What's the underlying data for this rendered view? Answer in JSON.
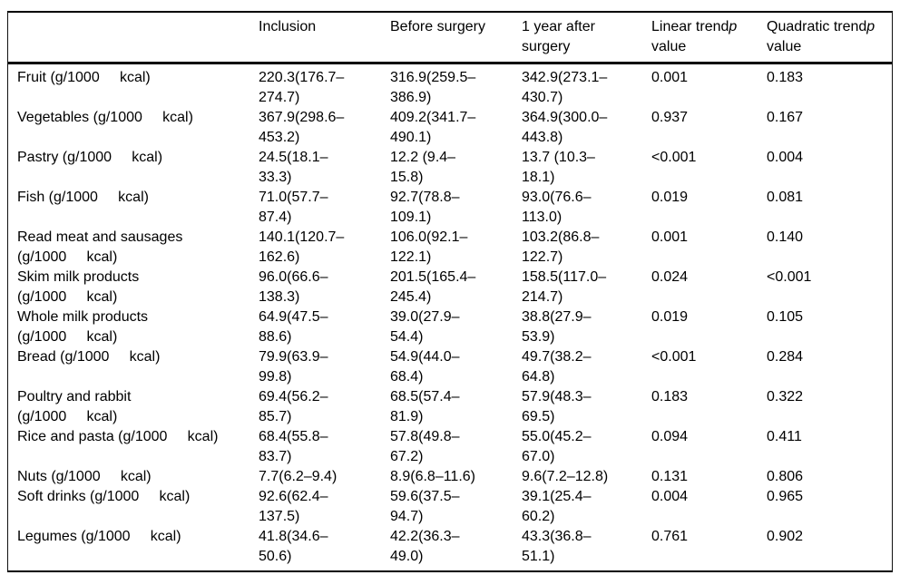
{
  "table": {
    "columns": [
      {
        "line1": "",
        "italic": "",
        "line2": ""
      },
      {
        "line1": "Inclusion",
        "italic": "",
        "line2": ""
      },
      {
        "line1": "Before surgery",
        "italic": "",
        "line2": ""
      },
      {
        "line1": "1 year after",
        "italic": "",
        "line2": "surgery"
      },
      {
        "line1": "Linear trend",
        "italic": "p",
        "line2": "value"
      },
      {
        "line1": "Quadratic trend",
        "italic": "p",
        "line2": "value"
      }
    ],
    "rows": [
      {
        "label": "Fruit (g/1000     kcal)",
        "inclusion": "220.3(176.7–274.7)",
        "before_surgery": "316.9(259.5–386.9)",
        "after_surgery": "342.9(273.1–430.7)",
        "linear_p": "0.001",
        "quadratic_p": "0.183"
      },
      {
        "label": "Vegetables (g/1000     kcal)",
        "inclusion": "367.9(298.6–453.2)",
        "before_surgery": "409.2(341.7–490.1)",
        "after_surgery": "364.9(300.0–443.8)",
        "linear_p": "0.937",
        "quadratic_p": "0.167"
      },
      {
        "label": "Pastry (g/1000     kcal)",
        "inclusion": "24.5(18.1–33.3)",
        "before_surgery": "12.2 (9.4–15.8)",
        "after_surgery": "13.7 (10.3–18.1)",
        "linear_p": "<0.001",
        "quadratic_p": "0.004"
      },
      {
        "label": "Fish (g/1000     kcal)",
        "inclusion": "71.0(57.7–87.4)",
        "before_surgery": "92.7(78.8–109.1)",
        "after_surgery": "93.0(76.6–113.0)",
        "linear_p": "0.019",
        "quadratic_p": "0.081"
      },
      {
        "label": "Read meat and sausages\n(g/1000     kcal)",
        "inclusion": "140.1(120.7–162.6)",
        "before_surgery": "106.0(92.1–122.1)",
        "after_surgery": "103.2(86.8–122.7)",
        "linear_p": "0.001",
        "quadratic_p": "0.140"
      },
      {
        "label": "Skim milk products\n(g/1000     kcal)",
        "inclusion": "96.0(66.6–138.3)",
        "before_surgery": "201.5(165.4–245.4)",
        "after_surgery": "158.5(117.0–214.7)",
        "linear_p": "0.024",
        "quadratic_p": "<0.001"
      },
      {
        "label": "Whole milk products\n(g/1000     kcal)",
        "inclusion": "64.9(47.5–88.6)",
        "before_surgery": "39.0(27.9–54.4)",
        "after_surgery": "38.8(27.9–53.9)",
        "linear_p": "0.019",
        "quadratic_p": "0.105"
      },
      {
        "label": "Bread (g/1000     kcal)",
        "inclusion": "79.9(63.9–99.8)",
        "before_surgery": "54.9(44.0–68.4)",
        "after_surgery": "49.7(38.2–64.8)",
        "linear_p": "<0.001",
        "quadratic_p": "0.284"
      },
      {
        "label": "Poultry and rabbit\n(g/1000     kcal)",
        "inclusion": "69.4(56.2–85.7)",
        "before_surgery": "68.5(57.4–81.9)",
        "after_surgery": "57.9(48.3–69.5)",
        "linear_p": "0.183",
        "quadratic_p": "0.322"
      },
      {
        "label": "Rice and pasta (g/1000     kcal)",
        "inclusion": "68.4(55.8–83.7)",
        "before_surgery": "57.8(49.8–67.2)",
        "after_surgery": "55.0(45.2–67.0)",
        "linear_p": "0.094",
        "quadratic_p": "0.411"
      },
      {
        "label": "Nuts (g/1000     kcal)",
        "inclusion": "7.7(6.2–9.4)",
        "before_surgery": "8.9(6.8–11.6)",
        "after_surgery": "9.6(7.2–12.8)",
        "linear_p": "0.131",
        "quadratic_p": "0.806"
      },
      {
        "label": "Soft drinks (g/1000     kcal)",
        "inclusion": "92.6(62.4–137.5)",
        "before_surgery": "59.6(37.5–94.7)",
        "after_surgery": "39.1(25.4–60.2)",
        "linear_p": "0.004",
        "quadratic_p": "0.965"
      },
      {
        "label": "Legumes (g/1000     kcal)",
        "inclusion": "41.8(34.6–50.6)",
        "before_surgery": "42.2(36.3–49.0)",
        "after_surgery": "43.3(36.8–51.1)",
        "linear_p": "0.761",
        "quadratic_p": "0.902"
      }
    ]
  }
}
